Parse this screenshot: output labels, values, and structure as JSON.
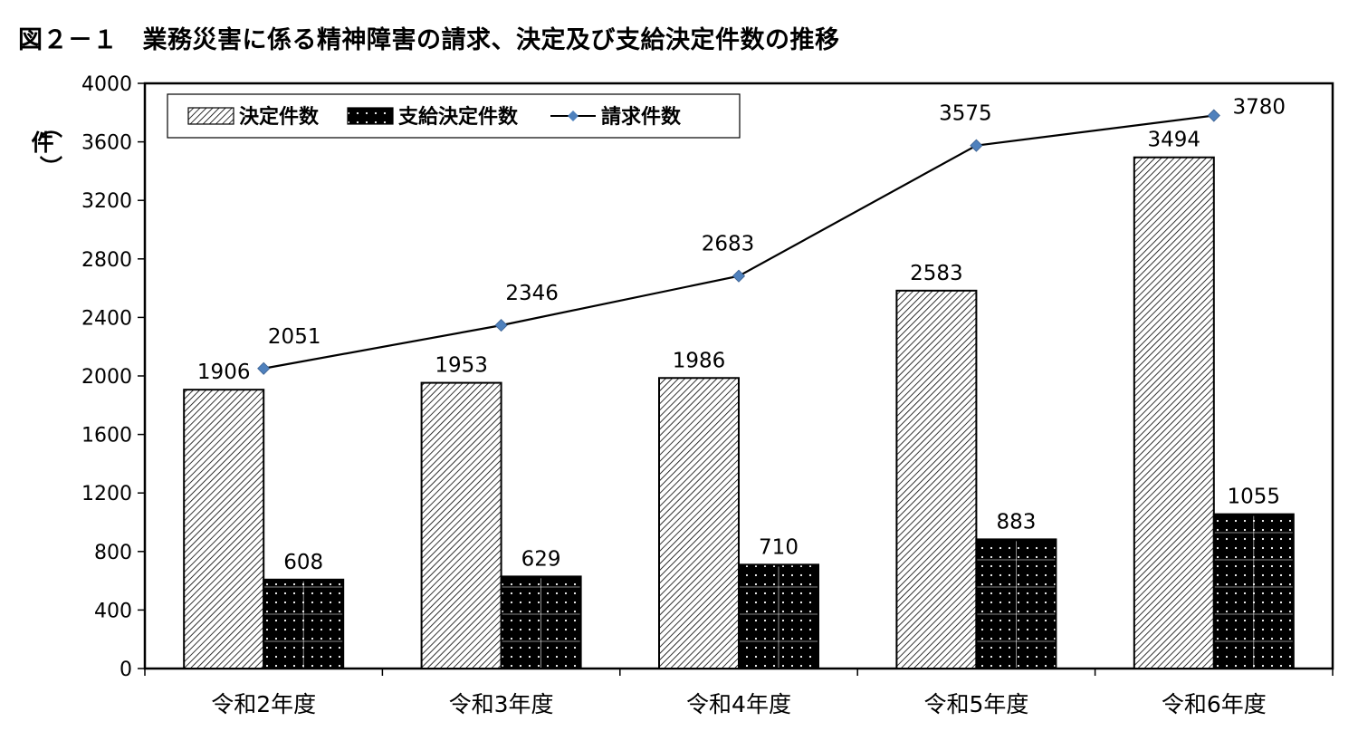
{
  "chart_data": {
    "type": "bar",
    "title": "図２－１　業務災害に係る精神障害の請求、決定及び支給決定件数の推移",
    "ylabel": "件",
    "ylim": [
      0,
      4000
    ],
    "yticks": [
      0,
      400,
      800,
      1200,
      1600,
      2000,
      2400,
      2800,
      3200,
      3600,
      4000
    ],
    "categories": [
      "令和2年度",
      "令和3年度",
      "令和4年度",
      "令和5年度",
      "令和6年度"
    ],
    "grid": false,
    "legend_position": "top-left",
    "series": [
      {
        "name": "決定件数",
        "kind": "bar",
        "pattern": "diagonal-hatch",
        "values": [
          1906,
          1953,
          1986,
          2583,
          3494
        ]
      },
      {
        "name": "支給決定件数",
        "kind": "bar",
        "pattern": "black-dotted-grid",
        "values": [
          608,
          629,
          710,
          883,
          1055
        ]
      },
      {
        "name": "請求件数",
        "kind": "line",
        "marker": "diamond",
        "values": [
          2051,
          2346,
          2683,
          3575,
          3780
        ]
      }
    ],
    "colors": {
      "line": "#000000",
      "marker": "#4f81bd",
      "bar_dark": "#000000",
      "hatch": "#000000"
    }
  }
}
